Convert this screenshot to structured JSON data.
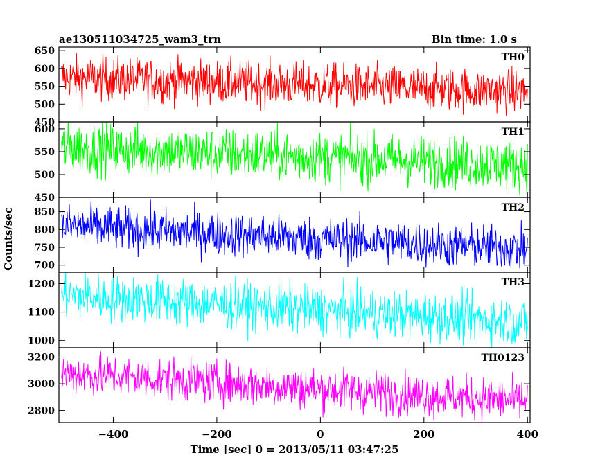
{
  "header": {
    "left_title": "ae130511034725_wam3_trn",
    "right_title": "Bin time: 1.0 s"
  },
  "chart_data": {
    "type": "line",
    "xlabel": "Time [sec] 0 = 2013/05/11 03:47:25",
    "ylabel": "Counts/sec",
    "xlim": [
      -505,
      405
    ],
    "xticks": [
      -400,
      -200,
      0,
      200,
      400
    ],
    "bin_time_s": 1.0,
    "panels": [
      {
        "name": "TH0",
        "color": "#ff0000",
        "ylim": [
          450,
          660
        ],
        "yticks": [
          450,
          500,
          550,
          600,
          650
        ],
        "trend_start": 575,
        "trend_end": 535,
        "noise_amplitude": 55
      },
      {
        "name": "TH1",
        "color": "#00ff00",
        "ylim": [
          450,
          615
        ],
        "yticks": [
          450,
          500,
          550,
          600
        ],
        "trend_start": 560,
        "trend_end": 520,
        "noise_amplitude": 50
      },
      {
        "name": "TH2",
        "color": "#0000ff",
        "ylim": [
          680,
          890
        ],
        "yticks": [
          700,
          750,
          800,
          850
        ],
        "trend_start": 810,
        "trend_end": 745,
        "noise_amplitude": 55
      },
      {
        "name": "TH3",
        "color": "#00ffff",
        "ylim": [
          975,
          1240
        ],
        "yticks": [
          1000,
          1100,
          1200
        ],
        "trend_start": 1160,
        "trend_end": 1065,
        "noise_amplitude": 75
      },
      {
        "name": "TH0123",
        "color": "#ff00ff",
        "ylim": [
          2710,
          3270
        ],
        "yticks": [
          2800,
          3000,
          3200
        ],
        "trend_start": 3080,
        "trend_end": 2870,
        "noise_amplitude": 140
      }
    ]
  }
}
